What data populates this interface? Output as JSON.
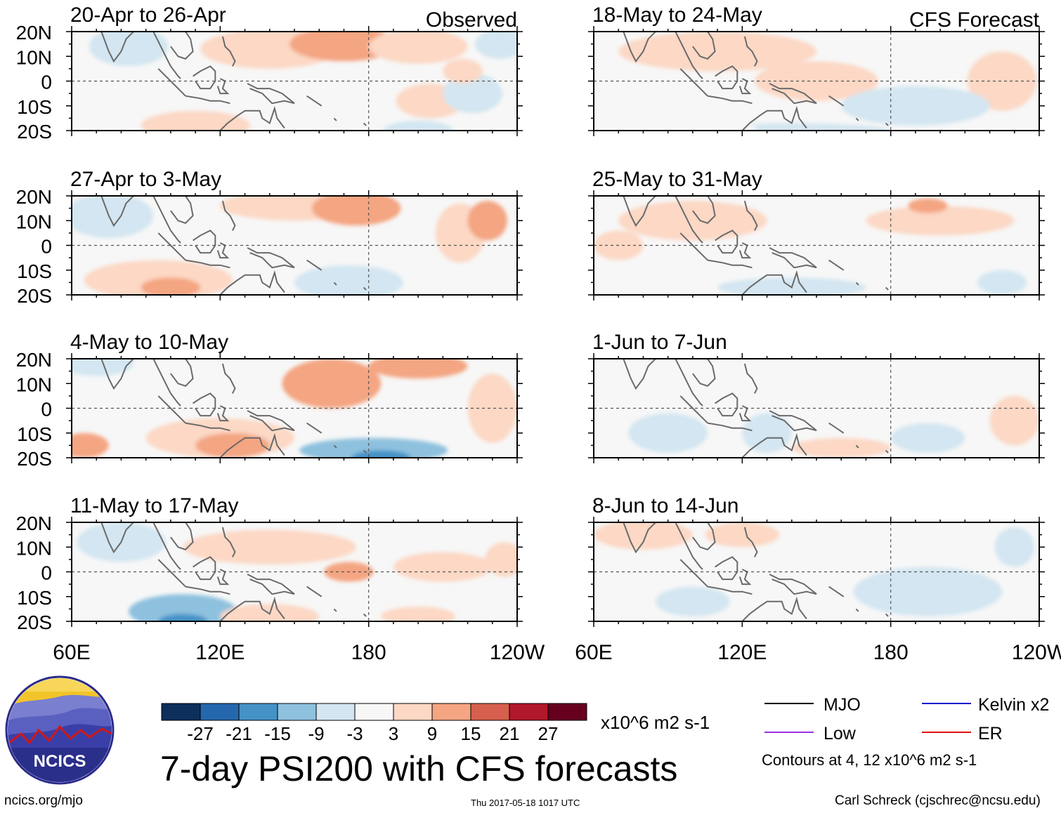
{
  "chart_data": {
    "type": "heatmap",
    "title": "7-day PSI200 with CFS forecasts",
    "column_labels": {
      "observed": "Observed",
      "forecast": "CFS Forecast"
    },
    "lat_labels": [
      "20N",
      "10N",
      "0",
      "10S",
      "20S"
    ],
    "lon_labels": [
      "60E",
      "120E",
      "180",
      "120W"
    ],
    "lat_range": [
      -20,
      20
    ],
    "lon_range": [
      60,
      240
    ],
    "panels": [
      {
        "period": "20-Apr to 26-Apr",
        "kind": "observed",
        "blobs": [
          {
            "lon": 83,
            "lat": 14,
            "rx": 16,
            "ry": 8,
            "v": -9
          },
          {
            "lon": 140,
            "lat": 13,
            "rx": 28,
            "ry": 8,
            "v": 6
          },
          {
            "lon": 170,
            "lat": 15,
            "rx": 22,
            "ry": 7,
            "v": 9
          },
          {
            "lon": 200,
            "lat": 14,
            "rx": 20,
            "ry": 7,
            "v": 6
          },
          {
            "lon": 233,
            "lat": 15,
            "rx": 10,
            "ry": 6,
            "v": -9
          },
          {
            "lon": 110,
            "lat": -18,
            "rx": 22,
            "ry": 6,
            "v": 5
          },
          {
            "lon": 205,
            "lat": -8,
            "rx": 14,
            "ry": 7,
            "v": 5
          },
          {
            "lon": 222,
            "lat": -5,
            "rx": 12,
            "ry": 8,
            "v": -5
          },
          {
            "lon": 218,
            "lat": 4,
            "rx": 8,
            "ry": 5,
            "v": 6
          },
          {
            "lon": 200,
            "lat": -20,
            "rx": 14,
            "ry": 4,
            "v": -9
          }
        ]
      },
      {
        "period": "27-Apr to 3-May",
        "kind": "observed",
        "blobs": [
          {
            "lon": 75,
            "lat": 12,
            "rx": 18,
            "ry": 9,
            "v": -6
          },
          {
            "lon": 150,
            "lat": 16,
            "rx": 30,
            "ry": 6,
            "v": 7
          },
          {
            "lon": 175,
            "lat": 15,
            "rx": 18,
            "ry": 7,
            "v": 10
          },
          {
            "lon": 95,
            "lat": -14,
            "rx": 30,
            "ry": 8,
            "v": 7
          },
          {
            "lon": 100,
            "lat": -17,
            "rx": 12,
            "ry": 4,
            "v": 12
          },
          {
            "lon": 172,
            "lat": -15,
            "rx": 22,
            "ry": 7,
            "v": -8
          },
          {
            "lon": 217,
            "lat": 5,
            "rx": 10,
            "ry": 12,
            "v": 7
          },
          {
            "lon": 228,
            "lat": 10,
            "rx": 8,
            "ry": 8,
            "v": 11
          }
        ]
      },
      {
        "period": "4-May to 10-May",
        "kind": "observed",
        "blobs": [
          {
            "lon": 70,
            "lat": 18,
            "rx": 15,
            "ry": 5,
            "v": -7
          },
          {
            "lon": 165,
            "lat": 10,
            "rx": 20,
            "ry": 10,
            "v": 10
          },
          {
            "lon": 200,
            "lat": 17,
            "rx": 20,
            "ry": 5,
            "v": 12
          },
          {
            "lon": 230,
            "lat": 0,
            "rx": 10,
            "ry": 14,
            "v": 8
          },
          {
            "lon": 120,
            "lat": -12,
            "rx": 30,
            "ry": 8,
            "v": 8
          },
          {
            "lon": 125,
            "lat": -15,
            "rx": 15,
            "ry": 5,
            "v": 13
          },
          {
            "lon": 65,
            "lat": -15,
            "rx": 10,
            "ry": 5,
            "v": 14
          },
          {
            "lon": 182,
            "lat": -17,
            "rx": 30,
            "ry": 5,
            "v": -11
          },
          {
            "lon": 185,
            "lat": -20,
            "rx": 12,
            "ry": 3,
            "v": -20
          }
        ]
      },
      {
        "period": "11-May to 17-May",
        "kind": "observed",
        "blobs": [
          {
            "lon": 80,
            "lat": 12,
            "rx": 18,
            "ry": 8,
            "v": -6
          },
          {
            "lon": 140,
            "lat": 10,
            "rx": 35,
            "ry": 7,
            "v": 5
          },
          {
            "lon": 172,
            "lat": 0,
            "rx": 10,
            "ry": 4,
            "v": 9
          },
          {
            "lon": 210,
            "lat": 2,
            "rx": 20,
            "ry": 6,
            "v": 5
          },
          {
            "lon": 235,
            "lat": 5,
            "rx": 8,
            "ry": 7,
            "v": 8
          },
          {
            "lon": 105,
            "lat": -16,
            "rx": 22,
            "ry": 7,
            "v": -10
          },
          {
            "lon": 105,
            "lat": -20,
            "rx": 10,
            "ry": 3,
            "v": -18
          },
          {
            "lon": 140,
            "lat": -18,
            "rx": 20,
            "ry": 5,
            "v": 4
          },
          {
            "lon": 200,
            "lat": -18,
            "rx": 15,
            "ry": 4,
            "v": 5
          }
        ]
      },
      {
        "period": "18-May to 24-May",
        "kind": "forecast",
        "blobs": [
          {
            "lon": 110,
            "lat": 12,
            "rx": 40,
            "ry": 8,
            "v": 5
          },
          {
            "lon": 150,
            "lat": 0,
            "rx": 25,
            "ry": 8,
            "v": 4
          },
          {
            "lon": 225,
            "lat": 0,
            "rx": 14,
            "ry": 12,
            "v": 5
          },
          {
            "lon": 190,
            "lat": -10,
            "rx": 30,
            "ry": 8,
            "v": -4
          },
          {
            "lon": 140,
            "lat": -20,
            "rx": 40,
            "ry": 3,
            "v": -4
          },
          {
            "lon": 96,
            "lat": -19,
            "rx": 30,
            "ry": 3,
            "v": -3
          }
        ]
      },
      {
        "period": "25-May to 31-May",
        "kind": "forecast",
        "blobs": [
          {
            "lon": 100,
            "lat": 10,
            "rx": 30,
            "ry": 8,
            "v": 4
          },
          {
            "lon": 70,
            "lat": 0,
            "rx": 10,
            "ry": 6,
            "v": 4
          },
          {
            "lon": 200,
            "lat": 10,
            "rx": 30,
            "ry": 6,
            "v": 4
          },
          {
            "lon": 195,
            "lat": 16,
            "rx": 8,
            "ry": 3,
            "v": 9
          },
          {
            "lon": 140,
            "lat": -17,
            "rx": 30,
            "ry": 4,
            "v": -4
          },
          {
            "lon": 225,
            "lat": -15,
            "rx": 10,
            "ry": 5,
            "v": -4
          }
        ]
      },
      {
        "period": "1-Jun to 7-Jun",
        "kind": "forecast",
        "blobs": [
          {
            "lon": 90,
            "lat": -10,
            "rx": 16,
            "ry": 8,
            "v": -4
          },
          {
            "lon": 130,
            "lat": -10,
            "rx": 10,
            "ry": 8,
            "v": -4
          },
          {
            "lon": 160,
            "lat": -16,
            "rx": 20,
            "ry": 4,
            "v": 4
          },
          {
            "lon": 195,
            "lat": -12,
            "rx": 15,
            "ry": 6,
            "v": -4
          },
          {
            "lon": 230,
            "lat": -5,
            "rx": 10,
            "ry": 10,
            "v": 4
          },
          {
            "lon": 70,
            "lat": 16,
            "rx": 8,
            "ry": 4,
            "v": -3
          }
        ]
      },
      {
        "period": "8-Jun to 14-Jun",
        "kind": "forecast",
        "blobs": [
          {
            "lon": 80,
            "lat": 15,
            "rx": 20,
            "ry": 6,
            "v": 4
          },
          {
            "lon": 120,
            "lat": 15,
            "rx": 15,
            "ry": 5,
            "v": 4
          },
          {
            "lon": 195,
            "lat": -8,
            "rx": 30,
            "ry": 10,
            "v": -4
          },
          {
            "lon": 100,
            "lat": -12,
            "rx": 15,
            "ry": 6,
            "v": -4
          },
          {
            "lon": 230,
            "lat": 10,
            "rx": 8,
            "ry": 8,
            "v": -4
          }
        ]
      }
    ],
    "colorbar": {
      "colors": [
        "#0d2f5c",
        "#2567ad",
        "#4592c7",
        "#8ec1de",
        "#d3e6f1",
        "#f7f7f7",
        "#fcd8c5",
        "#f4a582",
        "#d6604d",
        "#b2182b",
        "#67001f"
      ],
      "tick_labels": [
        "-27",
        "-21",
        "-15",
        "-9",
        "-3",
        "3",
        "9",
        "15",
        "21",
        "27"
      ],
      "units": "x10^6 m2 s-1"
    },
    "legend": {
      "entries": [
        {
          "label": "MJO",
          "color": "#000000"
        },
        {
          "label": "Kelvin x2",
          "color": "#1010d0"
        },
        {
          "label": "Low",
          "color": "#9b30e0"
        },
        {
          "label": "ER",
          "color": "#e01010"
        }
      ],
      "contour_note": "Contours at 4, 12 x10^6 m2 s-1"
    }
  },
  "logo": {
    "text": "NCICS"
  },
  "footer": {
    "url": "ncics.org/mjo",
    "timestamp": "Thu 2017-05-18 1017 UTC",
    "credit": "Carl Schreck (cjschrec@ncsu.edu)"
  }
}
